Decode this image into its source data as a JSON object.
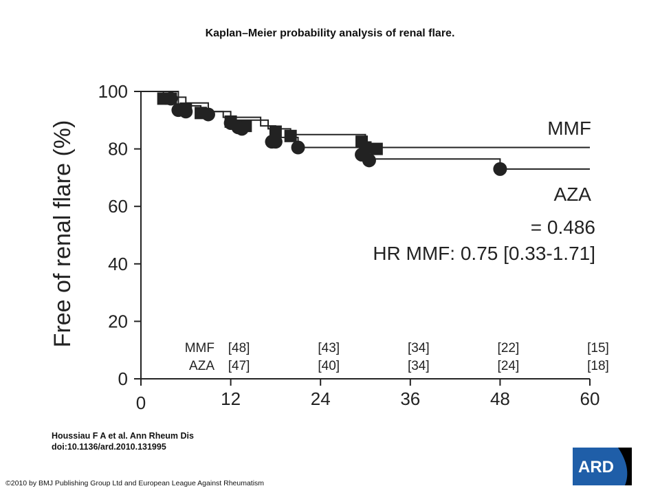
{
  "slide_title": "Kaplan–Meier probability analysis of renal flare.",
  "citation": {
    "line1": "Houssiau F A et al. Ann Rheum Dis",
    "line2": "doi:10.1136/ard.2010.131995"
  },
  "copyright": "©2010 by BMJ Publishing Group Ltd and European League Against Rheumatism",
  "logo": {
    "text": "ARD",
    "bg_color": "#1f5ea8",
    "text_color": "#ffffff"
  },
  "chart_data": {
    "type": "line",
    "step": true,
    "title": "",
    "xlabel": "",
    "ylabel": "Free of renal flare (%)",
    "xlim": [
      0,
      60
    ],
    "ylim": [
      0,
      100
    ],
    "xticks": [
      0,
      12,
      24,
      36,
      48,
      60
    ],
    "yticks": [
      0,
      20,
      40,
      60,
      80,
      100
    ],
    "grid": false,
    "marker_color": "#222222",
    "series": [
      {
        "name": "MMF",
        "marker": "square",
        "steps": [
          [
            0,
            100
          ],
          [
            3,
            98
          ],
          [
            6,
            96
          ],
          [
            9,
            93
          ],
          [
            12,
            90
          ],
          [
            17,
            87
          ],
          [
            20,
            85
          ],
          [
            30,
            80.5
          ],
          [
            60,
            80.5
          ]
        ],
        "censor_points": [
          [
            3,
            97.5
          ],
          [
            4,
            97.5
          ],
          [
            6,
            94
          ],
          [
            8,
            92.5
          ],
          [
            12,
            89.5
          ],
          [
            14,
            88
          ],
          [
            18,
            86
          ],
          [
            20,
            84.5
          ],
          [
            29.5,
            82.5
          ],
          [
            30,
            80.5
          ],
          [
            31.5,
            80
          ]
        ]
      },
      {
        "name": "AZA",
        "marker": "circle",
        "steps": [
          [
            0,
            100
          ],
          [
            5,
            95
          ],
          [
            8,
            93
          ],
          [
            11,
            91
          ],
          [
            16,
            88
          ],
          [
            18,
            84
          ],
          [
            21,
            80.5
          ],
          [
            30,
            76.5
          ],
          [
            48,
            73
          ],
          [
            60,
            73
          ]
        ],
        "censor_points": [
          [
            4,
            97.5
          ],
          [
            5,
            93.5
          ],
          [
            6,
            93
          ],
          [
            9,
            92
          ],
          [
            12,
            89
          ],
          [
            13,
            87.5
          ],
          [
            13.5,
            87
          ],
          [
            17.5,
            82.5
          ],
          [
            18,
            82.5
          ],
          [
            21,
            80.5
          ],
          [
            29.5,
            78
          ],
          [
            30.5,
            76
          ],
          [
            48,
            73
          ]
        ]
      }
    ],
    "annotations": {
      "p_value": "= 0.486",
      "hr": "HR MMF: 0.75 [0.33-1.71]"
    },
    "at_risk": {
      "times": [
        12,
        24,
        36,
        48,
        60
      ],
      "rows": [
        {
          "label": "MMF",
          "values": [
            "[48]",
            "[43]",
            "[34]",
            "[22]",
            "[15]"
          ]
        },
        {
          "label": "AZA",
          "values": [
            "[47]",
            "[40]",
            "[34]",
            "[24]",
            "[18]"
          ]
        }
      ]
    }
  }
}
